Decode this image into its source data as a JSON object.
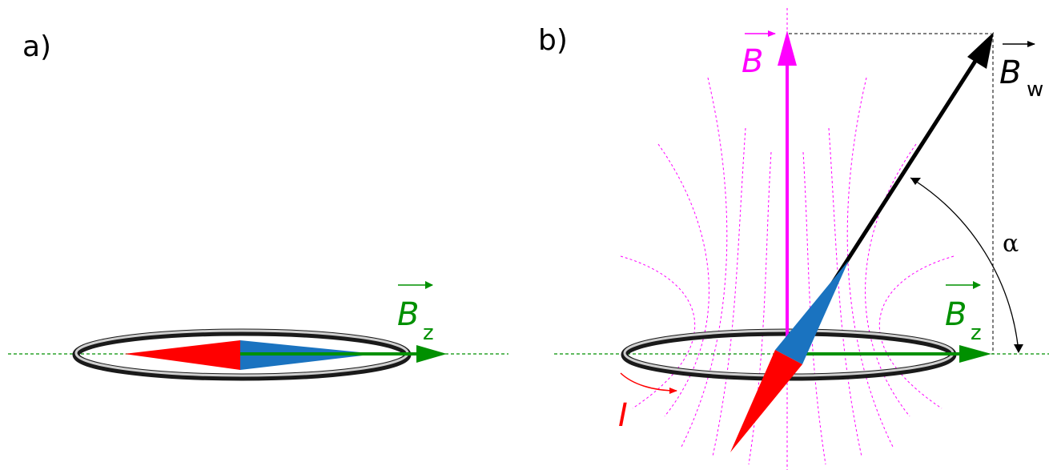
{
  "panel_a": {
    "label": "a)",
    "bz_symbol": "B",
    "bz_subscript": "z"
  },
  "panel_b": {
    "label": "b)",
    "b_symbol": "B",
    "bw_symbol": "B",
    "bw_subscript": "w",
    "bz_symbol": "B",
    "bz_subscript": "z",
    "angle_symbol": "α",
    "current_symbol": "I"
  },
  "colors": {
    "earth_field": "#009000",
    "coil_field": "#ff00ff",
    "resultant": "#000000",
    "needle_north": "#1a73c0",
    "needle_south": "#ff0000",
    "current": "#ff0000"
  }
}
